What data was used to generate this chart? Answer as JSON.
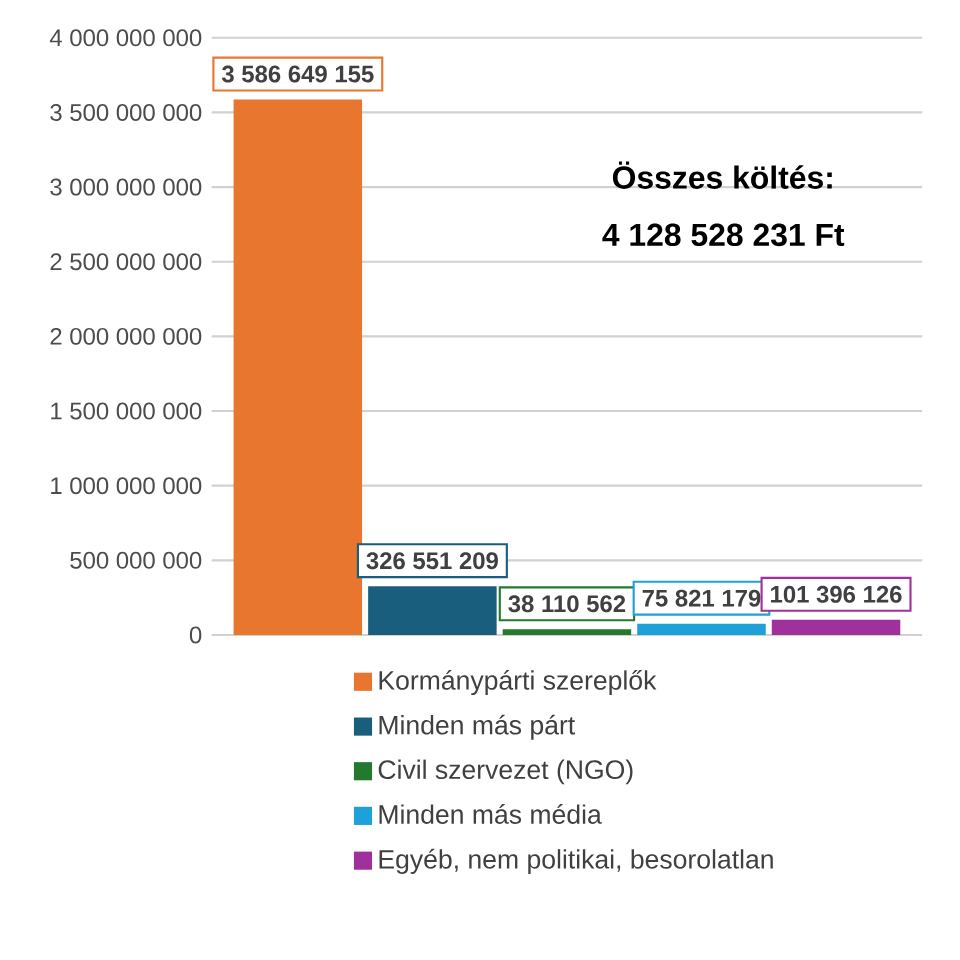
{
  "chart_data": {
    "type": "bar",
    "categories": [
      null
    ],
    "series": [
      {
        "name": "Kormánypárti szereplők",
        "color": "#e8762f",
        "values": [
          3586649155
        ],
        "value_labels": [
          "3 586 649 155"
        ]
      },
      {
        "name": "Minden más párt",
        "color": "#1a5e7e",
        "values": [
          326551209
        ],
        "value_labels": [
          "326 551 209"
        ]
      },
      {
        "name": "Civil szervezet (NGO)",
        "color": "#237a2e",
        "values": [
          38110562
        ],
        "value_labels": [
          "38 110 562"
        ]
      },
      {
        "name": "Minden más média",
        "color": "#1ea1d8",
        "values": [
          75821179
        ],
        "value_labels": [
          "75 821 179"
        ]
      },
      {
        "name": "Egyéb, nem politikai, besorolatlan",
        "color": "#a0319c",
        "values": [
          101396126
        ],
        "value_labels": [
          "101 396 126"
        ]
      }
    ],
    "ylim": [
      0,
      4000000000
    ],
    "yticks": [
      0,
      {
        "value": 500000000,
        "label": "500 000 000"
      },
      {
        "value": 1000000000,
        "label": "1 000 000 000"
      },
      {
        "value": 1500000000,
        "label": "1 500 000 000"
      },
      {
        "value": 2000000000,
        "label": "2 000 000 000"
      },
      {
        "value": 2500000000,
        "label": "2 500 000 000"
      },
      {
        "value": 3000000000,
        "label": "3 000 000 000"
      },
      {
        "value": 3500000000,
        "label": "3 500 000 000"
      },
      {
        "value": 4000000000,
        "label": "4 000 000 000"
      }
    ],
    "annotations": [
      "Összes költés:",
      "4 128 528 231 Ft"
    ],
    "grid": "y",
    "legend": "bottom"
  }
}
